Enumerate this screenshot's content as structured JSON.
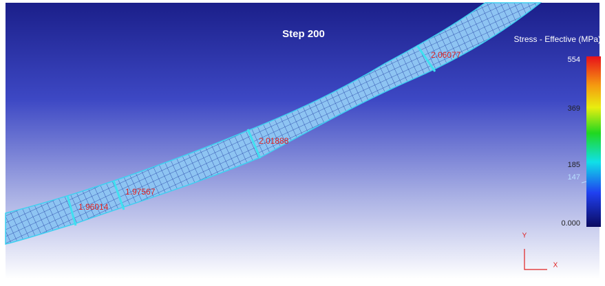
{
  "viewport": {
    "title": "Step 200",
    "probes": [
      "1.96014",
      "1.97567",
      "2.01888",
      "2.06077"
    ]
  },
  "legend": {
    "title": "Stress - Effective (MPa)",
    "labels": [
      "554",
      "369",
      "185",
      "147",
      "0.000"
    ]
  },
  "triad": {
    "y": "Y",
    "x": "X"
  }
}
